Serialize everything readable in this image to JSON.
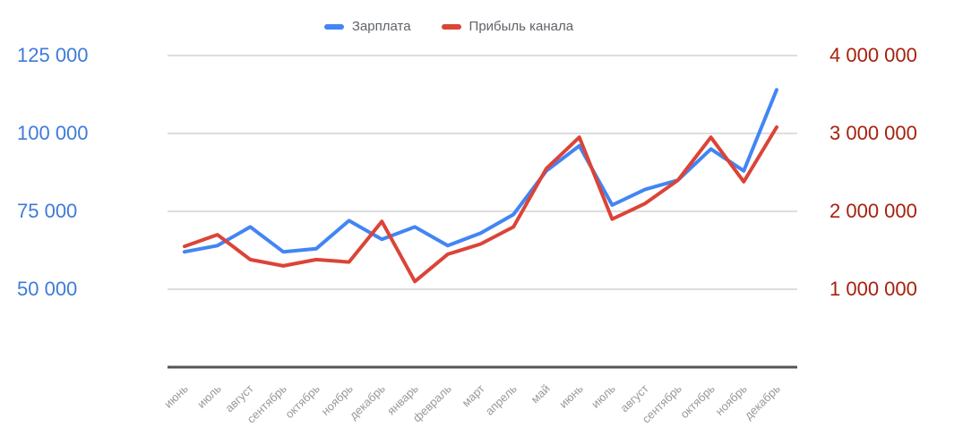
{
  "legend": {
    "items": [
      {
        "label": "Зарплата",
        "color": "#4285F4"
      },
      {
        "label": "Прибыль канала",
        "color": "#DB4437"
      }
    ]
  },
  "chart_data": {
    "type": "line",
    "title": "",
    "xlabel": "",
    "ylabel_left": "",
    "ylabel_right": "",
    "grid": true,
    "legend_position": "top",
    "categories": [
      "июнь",
      "июль",
      "август",
      "сентябрь",
      "октябрь",
      "ноябрь",
      "декабрь",
      "январь",
      "февраль",
      "март",
      "апрель",
      "май",
      "июнь",
      "июль",
      "август",
      "сентябрь",
      "октябрь",
      "ноябрь",
      "декабрь"
    ],
    "series": [
      {
        "name": "Зарплата",
        "axis": "left",
        "color": "#4285F4",
        "values": [
          62000,
          64000,
          70000,
          62000,
          63000,
          72000,
          66000,
          70000,
          64000,
          68000,
          74000,
          88000,
          96000,
          77000,
          82000,
          85000,
          95000,
          88000,
          114000
        ]
      },
      {
        "name": "Прибыль канала",
        "axis": "right",
        "color": "#DB4437",
        "values": [
          1550000,
          1700000,
          1380000,
          1300000,
          1380000,
          1350000,
          1870000,
          1100000,
          1450000,
          1580000,
          1800000,
          2550000,
          2950000,
          1900000,
          2100000,
          2400000,
          2950000,
          2380000,
          3080000
        ]
      }
    ],
    "left_axis": {
      "color": "#3E7BD9",
      "range": [
        25000,
        125000
      ],
      "ticks": [
        {
          "value": 125000,
          "label": "125 000"
        },
        {
          "value": 100000,
          "label": "100 000"
        },
        {
          "value": 75000,
          "label": "75 000"
        },
        {
          "value": 50000,
          "label": "50 000"
        }
      ]
    },
    "right_axis": {
      "color": "#A8200D",
      "range": [
        0,
        4000000
      ],
      "ticks": [
        {
          "value": 4000000,
          "label": "4 000 000"
        },
        {
          "value": 3000000,
          "label": "3 000 000"
        },
        {
          "value": 2000000,
          "label": "2 000 000"
        },
        {
          "value": 1000000,
          "label": "1 000 000"
        }
      ]
    }
  }
}
